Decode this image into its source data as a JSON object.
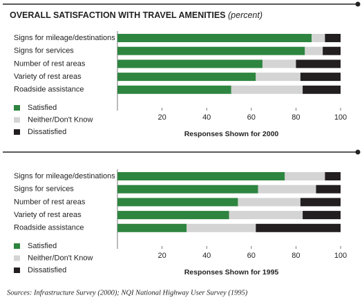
{
  "title": "OVERALL SATISFACTION WITH TRAVEL AMENITIES",
  "title_note": "(percent)",
  "source": "Sources: Infrastructure Survey (2000); NQI National Highway User Survey (1995)",
  "chart_data": [
    {
      "type": "stacked-bar-horizontal",
      "categories": [
        "Signs for mileage/destinations",
        "Signs for services",
        "Number of rest areas",
        "Variety of rest areas",
        "Roadside assistance"
      ],
      "series": [
        {
          "name": "Satisfied",
          "color": "#2e8540",
          "values": [
            87,
            84,
            65,
            62,
            51
          ]
        },
        {
          "name": "Neither/Don't Know",
          "color": "#d4d4d4",
          "values": [
            6,
            8,
            15,
            20,
            32
          ]
        },
        {
          "name": "Dissatisfied",
          "color": "#231f20",
          "values": [
            7,
            8,
            20,
            18,
            17
          ]
        }
      ],
      "xlim": [
        0,
        100
      ],
      "xticks": [
        20,
        40,
        60,
        80,
        100
      ],
      "xlabel": "Responses Shown for 2000"
    },
    {
      "type": "stacked-bar-horizontal",
      "categories": [
        "Signs for mileage/destinations",
        "Signs for services",
        "Number of rest areas",
        "Variety of rest areas",
        "Roadside assistance"
      ],
      "series": [
        {
          "name": "Satisfied",
          "color": "#2e8540",
          "values": [
            75,
            63,
            54,
            50,
            31
          ]
        },
        {
          "name": "Neither/Don't Know",
          "color": "#d4d4d4",
          "values": [
            18,
            26,
            28,
            33,
            31
          ]
        },
        {
          "name": "Dissatisfied",
          "color": "#231f20",
          "values": [
            7,
            11,
            18,
            17,
            38
          ]
        }
      ],
      "xlim": [
        0,
        100
      ],
      "xticks": [
        20,
        40,
        60,
        80,
        100
      ],
      "xlabel": "Responses Shown for 1995"
    }
  ]
}
